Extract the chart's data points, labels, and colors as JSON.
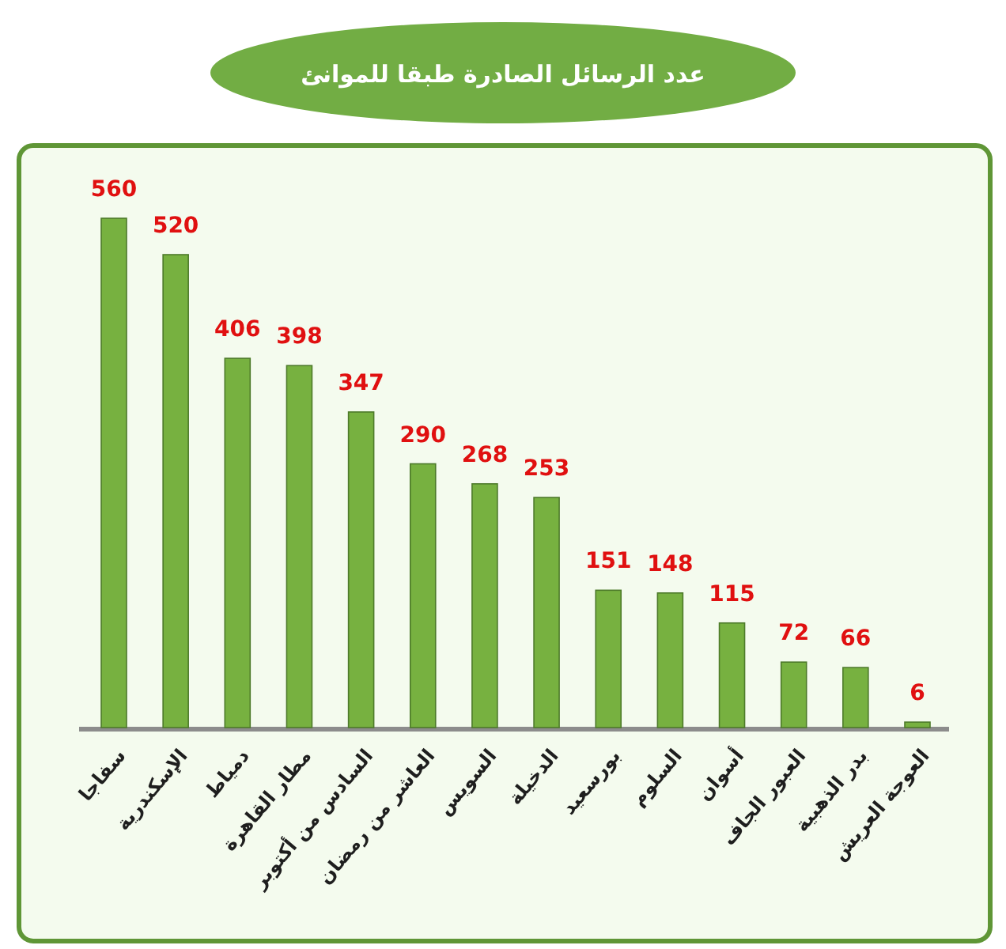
{
  "chart_data": {
    "type": "bar",
    "title": "عدد الرسائل الصادرة طبقا للموانئ",
    "categories": [
      "سفاجا",
      "الإسكندرية",
      "دمياط",
      "مطار القاهرة",
      "السادس من أكتوبر",
      "العاشر من رمضان",
      "السويس",
      "الدخيلة",
      "بورسعيد",
      "السلوم",
      "أسوان",
      "العبور الجاف",
      "بدر الذهبية",
      "العوجة العريش"
    ],
    "values": [
      560,
      520,
      406,
      398,
      347,
      290,
      268,
      253,
      151,
      148,
      115,
      72,
      66,
      6
    ],
    "color": "#77b140",
    "data_labels": true
  }
}
